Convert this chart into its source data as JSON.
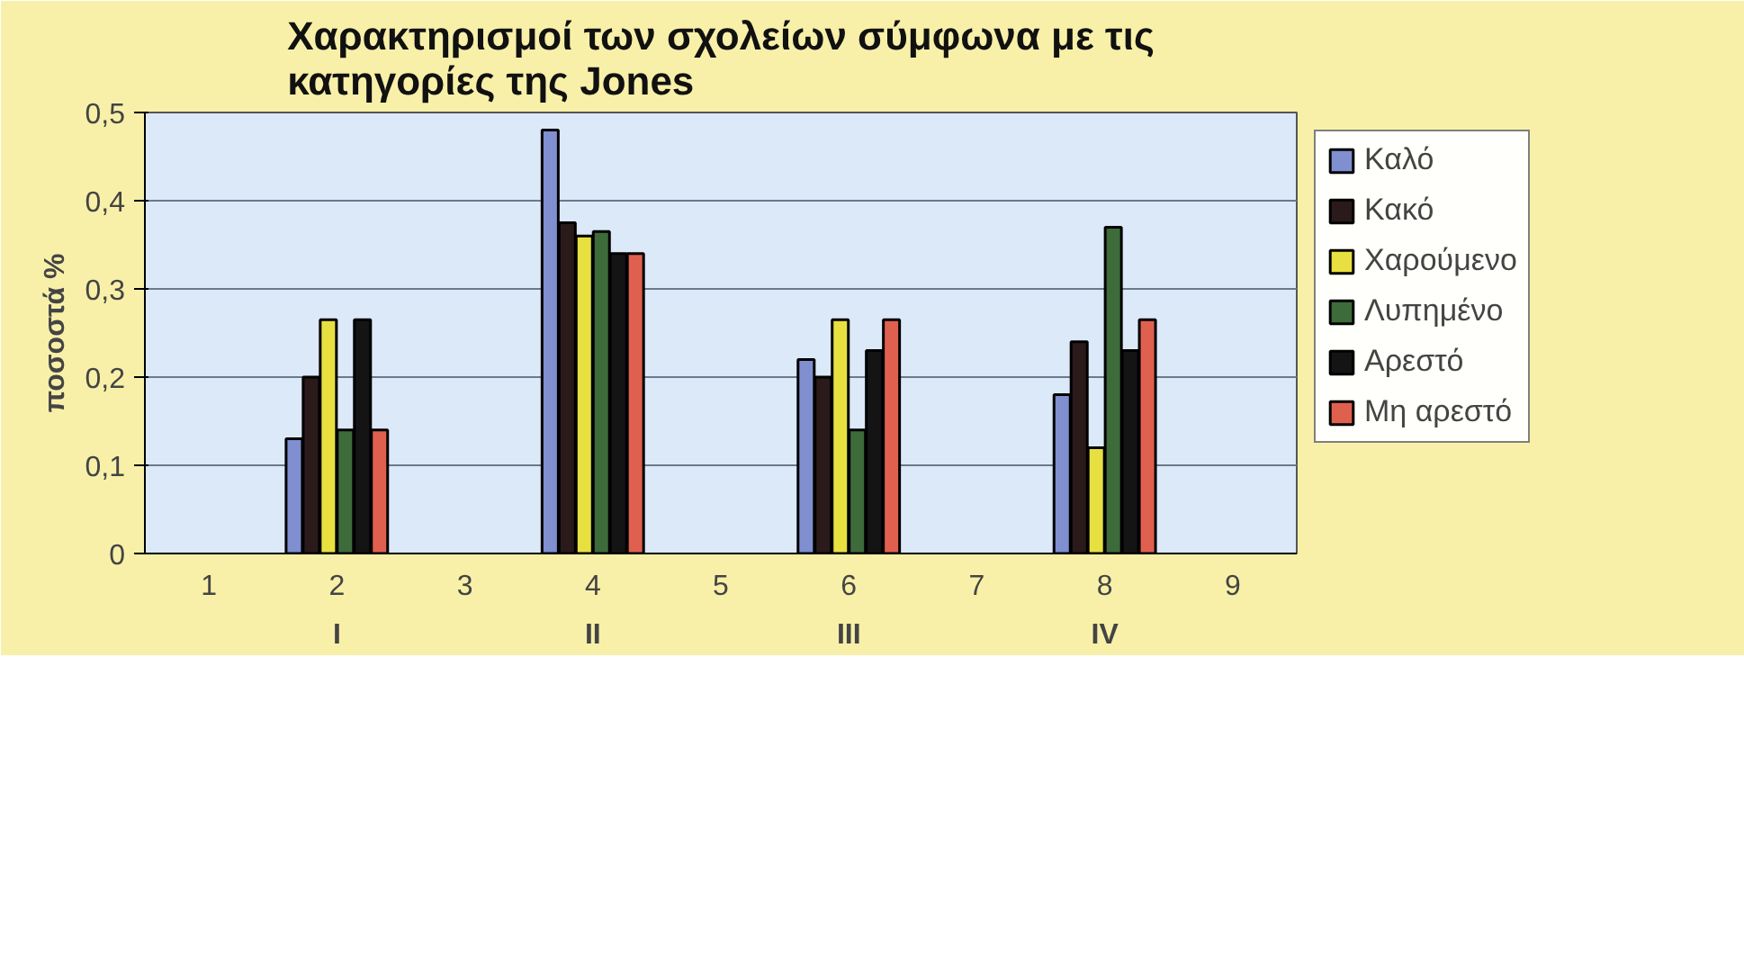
{
  "chart_data": {
    "type": "bar",
    "title": "Χαρακτηρισμοί των σχολείων σύμφωνα με τις κατηγορίες της Jones",
    "ylabel": "ποσοστά %",
    "categories": [
      "1",
      "2",
      "3",
      "4",
      "5",
      "6",
      "7",
      "8",
      "9"
    ],
    "series": [
      {
        "name": "Καλό",
        "color": "#7f8fd0",
        "values": [
          null,
          0.13,
          null,
          0.48,
          null,
          0.22,
          null,
          0.18,
          null
        ]
      },
      {
        "name": "Κακό",
        "color": "#2a1a1a",
        "values": [
          null,
          0.2,
          null,
          0.375,
          null,
          0.2,
          null,
          0.24,
          null
        ]
      },
      {
        "name": "Χαρούμενο",
        "color": "#e8e040",
        "values": [
          null,
          0.265,
          null,
          0.36,
          null,
          0.265,
          null,
          0.12,
          null
        ]
      },
      {
        "name": "Λυπημένο",
        "color": "#3d6b3a",
        "values": [
          null,
          0.14,
          null,
          0.365,
          null,
          0.14,
          null,
          0.37,
          null
        ]
      },
      {
        "name": "Αρεστό",
        "color": "#141414",
        "values": [
          null,
          0.265,
          null,
          0.34,
          null,
          0.23,
          null,
          0.23,
          null
        ]
      },
      {
        "name": "Μη αρεστό",
        "color": "#e06050",
        "values": [
          null,
          0.14,
          null,
          0.34,
          null,
          0.265,
          null,
          0.265,
          null
        ]
      }
    ],
    "ylim": [
      0,
      0.5
    ],
    "yticks": [
      0,
      {
        "value": 0.1,
        "label": "0,1"
      },
      {
        "value": 0.2,
        "label": "0,2"
      },
      {
        "value": 0.3,
        "label": "0,3"
      },
      {
        "value": 0.4,
        "label": "0,4"
      },
      {
        "value": 0.5,
        "label": "0,5"
      }
    ],
    "grid": "y",
    "legend": "right",
    "annotations": [
      "I",
      "II",
      "III",
      "IV"
    ]
  }
}
